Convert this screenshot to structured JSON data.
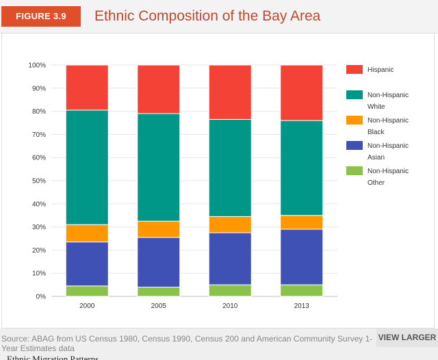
{
  "header": {
    "figure_label": "FIGURE 3.9",
    "title": "Ethnic Composition of the Bay Area"
  },
  "footer": {
    "source": "Source: ABAG from US Census 1980, Census 1990, Census 200 and American Community Survey 1-Year Estimates data",
    "view_larger": "VIEW LARGER",
    "cutoff_text": "Ethnic Migration Patterns"
  },
  "colors": {
    "Hispanic": "#f44336",
    "Non-Hispanic White": "#009688",
    "Non-Hispanic Black": "#ff9800",
    "Non-Hispanic Asian": "#3f51b5",
    "Non-Hispanic Other": "#8bc34a",
    "accent": "#e14e2a",
    "title": "#c1472e"
  },
  "chart_data": {
    "type": "bar",
    "stacked": true,
    "categories": [
      "2000",
      "2005",
      "2010",
      "2013"
    ],
    "series": [
      {
        "name": "Non-Hispanic Other",
        "legend_lines": [
          "Non-Hispanic",
          "Other"
        ],
        "values": [
          4.5,
          4.0,
          5.0,
          5.0
        ]
      },
      {
        "name": "Non-Hispanic Asian",
        "legend_lines": [
          "Non-Hispanic",
          "Asian"
        ],
        "values": [
          19.0,
          21.5,
          22.5,
          24.0
        ]
      },
      {
        "name": "Non-Hispanic Black",
        "legend_lines": [
          "Non-Hispanic",
          "Black"
        ],
        "values": [
          7.5,
          7.0,
          7.0,
          6.0
        ]
      },
      {
        "name": "Non-Hispanic White",
        "legend_lines": [
          "Non-Hispanic",
          "White"
        ],
        "values": [
          49.5,
          46.5,
          42.0,
          41.0
        ]
      },
      {
        "name": "Hispanic",
        "legend_lines": [
          "Hispanic"
        ],
        "values": [
          19.5,
          21.0,
          23.5,
          24.0
        ]
      }
    ],
    "legend_order": [
      "Hispanic",
      "Non-Hispanic White",
      "Non-Hispanic Black",
      "Non-Hispanic Asian",
      "Non-Hispanic Other"
    ],
    "y_ticks": [
      "0%",
      "10%",
      "20%",
      "30%",
      "40%",
      "50%",
      "60%",
      "70%",
      "80%",
      "90%",
      "100%"
    ],
    "ylim": [
      0,
      100
    ],
    "grid": true,
    "legend_position": "right"
  }
}
